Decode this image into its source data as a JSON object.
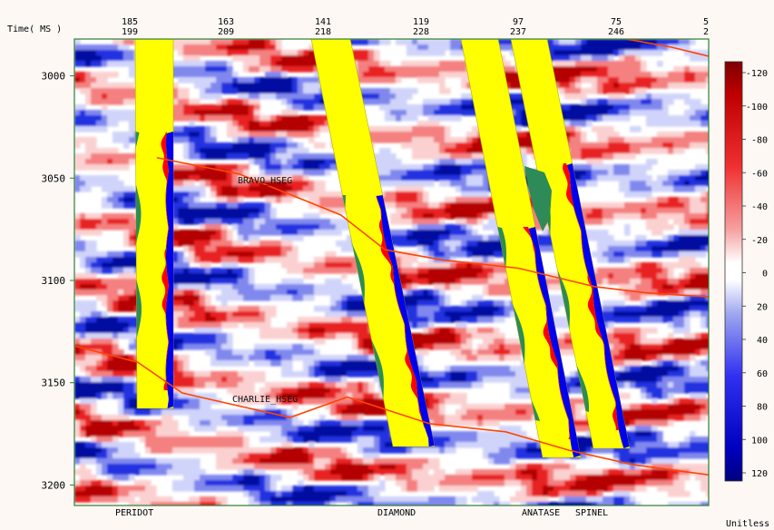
{
  "chart_data": {
    "type": "heatmap",
    "y_axis": {
      "label": "Time( MS )",
      "range": [
        2982,
        3210
      ],
      "ticks": [
        3000,
        3050,
        3100,
        3150,
        3200
      ],
      "reversed": true
    },
    "x_axis_top": {
      "row1": [
        "185",
        "163",
        "141",
        "119",
        "97",
        "75",
        "5"
      ],
      "row2": [
        "199",
        "209",
        "218",
        "228",
        "237",
        "246",
        "2"
      ]
    },
    "well_names": [
      "PERIDOT",
      "DIAMOND",
      "ANATASE",
      "SPINEL"
    ],
    "colorbar": {
      "ticks": [
        "-120",
        "-100",
        "-80",
        "-60",
        "-40",
        "-20",
        "0",
        "20",
        "40",
        "60",
        "80",
        "100",
        "120"
      ],
      "range": [
        -120,
        120
      ],
      "unit": "Unitless",
      "negative_color": "#a00000",
      "positive_color": "#000090",
      "mid_color": "#ffffff"
    },
    "horizons": [
      {
        "name": "BRAVO_HSEG",
        "color": "#ff4500",
        "points": [
          [
            0.13,
            3040
          ],
          [
            0.26,
            3048
          ],
          [
            0.42,
            3068
          ],
          [
            0.49,
            3085
          ],
          [
            0.58,
            3090
          ],
          [
            0.7,
            3094
          ],
          [
            0.82,
            3103
          ],
          [
            0.9,
            3106
          ],
          [
            1.0,
            3108
          ]
        ]
      },
      {
        "name": "CHARLIE_HSEG",
        "color": "#ff4500",
        "points": [
          [
            0.0,
            3132
          ],
          [
            0.1,
            3140
          ],
          [
            0.17,
            3155
          ],
          [
            0.24,
            3160
          ],
          [
            0.34,
            3167
          ],
          [
            0.43,
            3157
          ],
          [
            0.56,
            3170
          ],
          [
            0.68,
            3174
          ],
          [
            0.78,
            3183
          ],
          [
            0.88,
            3190
          ],
          [
            1.0,
            3195
          ]
        ]
      }
    ],
    "colors": {
      "well_band": "#ffff00",
      "red_curve": "#ff0000",
      "blue_curve": "#0000ee",
      "green_fill": "#2e8b57",
      "frame": "#2e7d32"
    }
  }
}
